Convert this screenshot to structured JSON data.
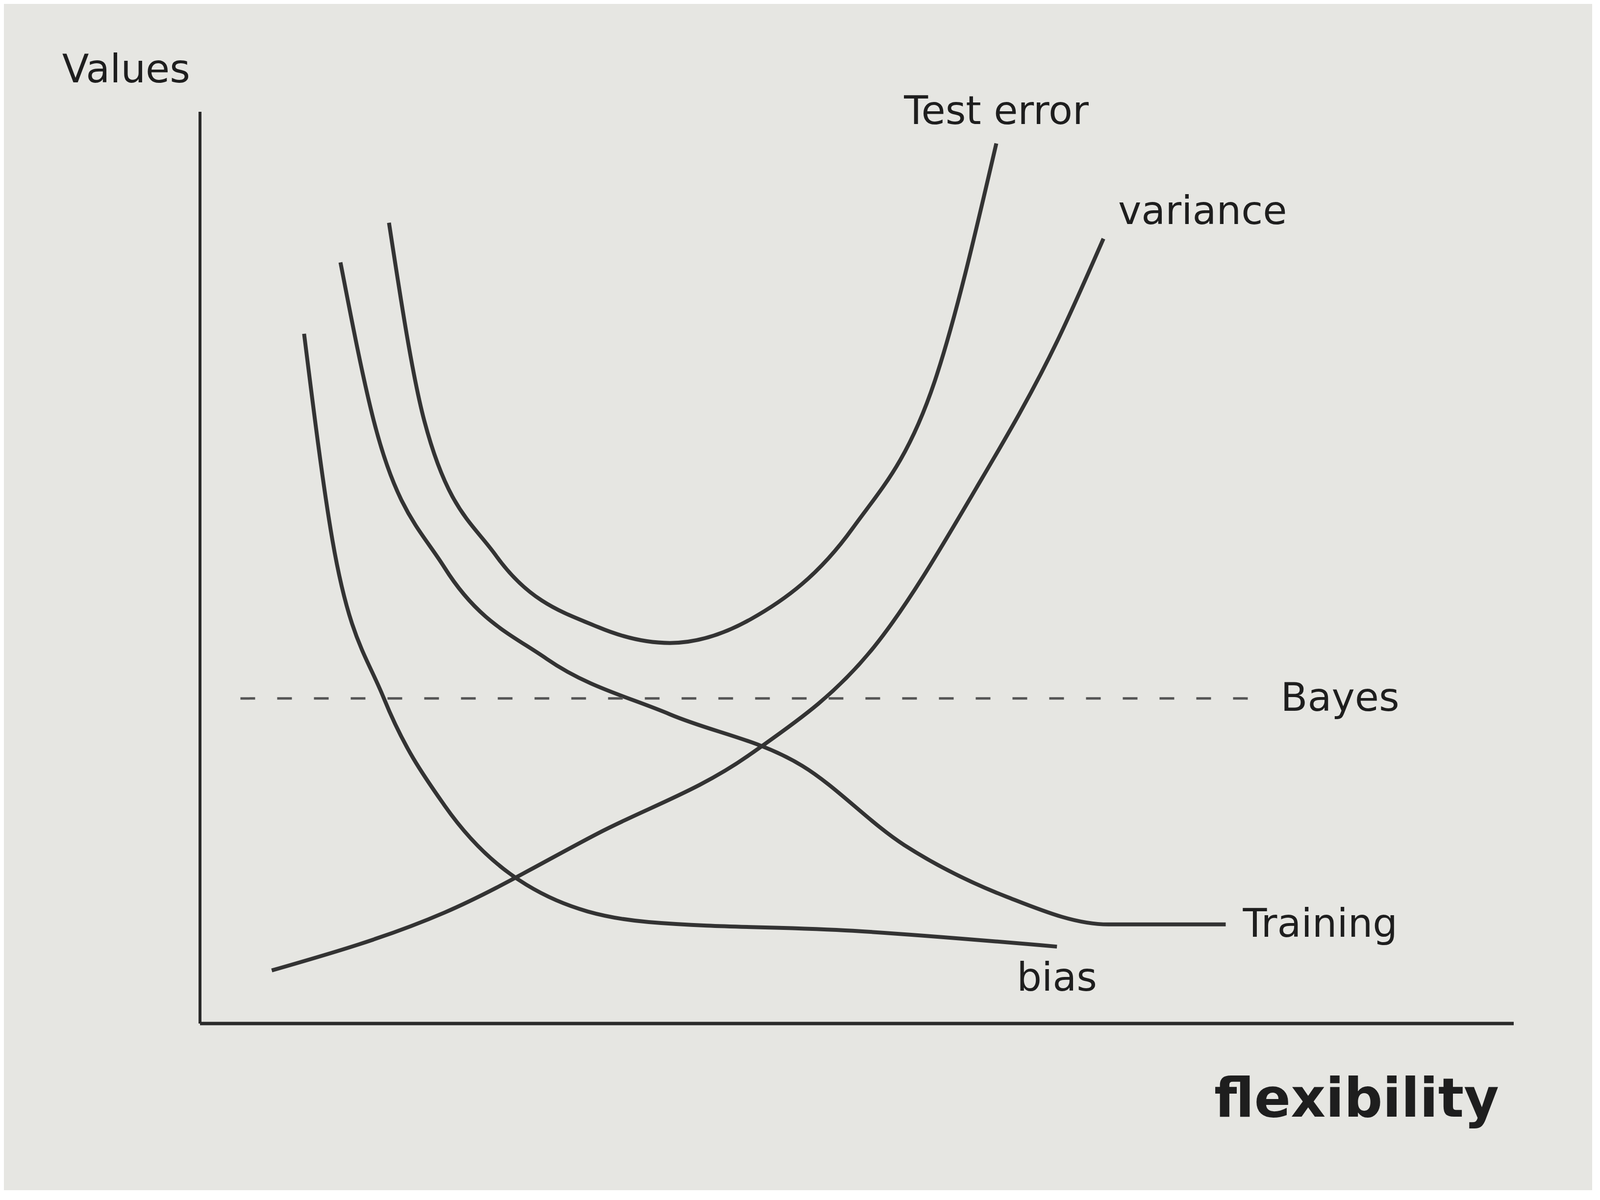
{
  "chart_data": {
    "type": "line",
    "x_label": "flexibility",
    "y_label": "Values",
    "tick_labels": false,
    "xlim": [
      0,
      13
    ],
    "ylim": [
      0,
      11.5
    ],
    "grid": false,
    "series": [
      {
        "name": "Test error",
        "color": "#333333",
        "line_style": "solid",
        "x": [
          1.87,
          2.22,
          2.93,
          3.94,
          4.65,
          5.45,
          6.46,
          7.27,
          7.88
        ],
        "values": [
          10.1,
          7.6,
          5.9,
          5.0,
          4.8,
          5.1,
          6.25,
          8.1,
          11.1
        ]
      },
      {
        "name": "variance",
        "color": "#333333",
        "line_style": "solid",
        "x": [
          0.71,
          2.42,
          3.94,
          5.45,
          6.67,
          7.68,
          8.48,
          8.94
        ],
        "values": [
          0.67,
          1.4,
          2.4,
          3.4,
          4.75,
          6.75,
          8.6,
          9.9
        ]
      },
      {
        "name": "Training",
        "color": "#333333",
        "line_style": "solid",
        "x": [
          1.39,
          1.72,
          2.42,
          3.43,
          4.65,
          5.96,
          6.97,
          7.98,
          8.99,
          10.15
        ],
        "values": [
          9.6,
          7.6,
          5.75,
          4.6,
          3.9,
          3.25,
          2.25,
          1.6,
          1.25,
          1.25
        ]
      },
      {
        "name": "bias",
        "color": "#333333",
        "line_style": "solid",
        "x": [
          1.03,
          1.31,
          1.82,
          2.42,
          3.23,
          4.44,
          6.46,
          8.48
        ],
        "values": [
          8.7,
          6.1,
          4.1,
          2.75,
          1.75,
          1.28,
          1.17,
          0.97
        ]
      },
      {
        "name": "Bayes",
        "color": "#555555",
        "line_style": "dashed",
        "x": [
          0.4,
          10.5
        ],
        "values": [
          4.1,
          4.1
        ]
      }
    ]
  }
}
